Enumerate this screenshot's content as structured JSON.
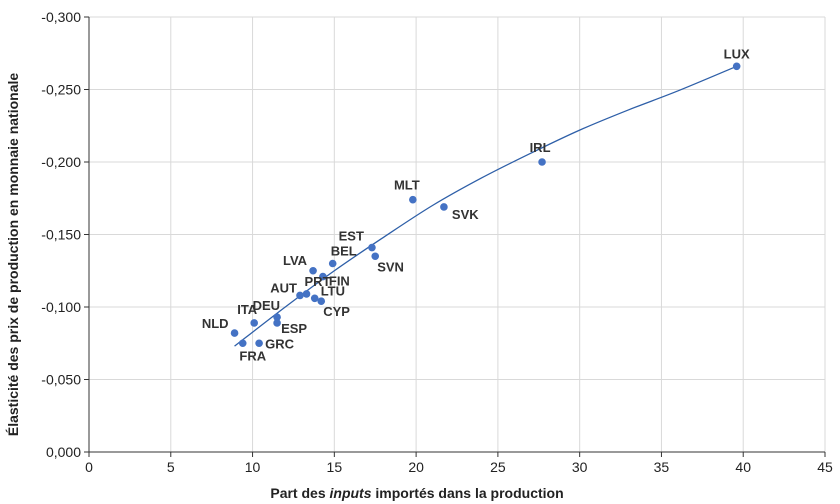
{
  "chart_data": {
    "type": "scatter",
    "xlabel_parts": [
      "Part des ",
      "inputs",
      " importés dans la production"
    ],
    "ylabel": "Élasticité des prix de production en monnaie nationale",
    "xlim": [
      0,
      45
    ],
    "ylim": [
      0,
      -0.3
    ],
    "x_ticks": [
      {
        "value": 0,
        "label": "0"
      },
      {
        "value": 5,
        "label": "5"
      },
      {
        "value": 10,
        "label": "10"
      },
      {
        "value": 15,
        "label": "15"
      },
      {
        "value": 20,
        "label": "20"
      },
      {
        "value": 25,
        "label": "25"
      },
      {
        "value": 30,
        "label": "30"
      },
      {
        "value": 35,
        "label": "35"
      },
      {
        "value": 40,
        "label": "40"
      },
      {
        "value": 45,
        "label": "45"
      }
    ],
    "y_ticks": [
      {
        "value": 0,
        "label": "0,000"
      },
      {
        "value": -0.05,
        "label": "-0,050"
      },
      {
        "value": -0.1,
        "label": "-0,100"
      },
      {
        "value": -0.15,
        "label": "-0,150"
      },
      {
        "value": -0.2,
        "label": "-0,200"
      },
      {
        "value": -0.25,
        "label": "-0,250"
      },
      {
        "value": -0.3,
        "label": "-0,300"
      }
    ],
    "grid": true,
    "point_color": "#4472c4",
    "trendline_color": "#2e5fa8",
    "points": [
      {
        "label": "LUX",
        "x": 39.6,
        "y": -0.266,
        "dx": 0,
        "dy": -8,
        "anchor": "middle"
      },
      {
        "label": "IRL",
        "x": 27.7,
        "y": -0.2,
        "dx": -2,
        "dy": -10,
        "anchor": "middle"
      },
      {
        "label": "MLT",
        "x": 19.8,
        "y": -0.174,
        "dx": -6,
        "dy": -10,
        "anchor": "middle"
      },
      {
        "label": "SVK",
        "x": 21.7,
        "y": -0.169,
        "dx": 8,
        "dy": 12,
        "anchor": "start"
      },
      {
        "label": "EST",
        "x": 17.3,
        "y": -0.141,
        "dx": -8,
        "dy": -7,
        "anchor": "end"
      },
      {
        "label": "SVN",
        "x": 17.5,
        "y": -0.135,
        "dx": 2,
        "dy": 15,
        "anchor": "start"
      },
      {
        "label": "BEL",
        "x": 14.9,
        "y": -0.13,
        "dx": -2,
        "dy": -8,
        "anchor": "start"
      },
      {
        "label": "LVA",
        "x": 13.7,
        "y": -0.125,
        "dx": -6,
        "dy": -6,
        "anchor": "end"
      },
      {
        "label": "FIN",
        "x": 14.3,
        "y": -0.121,
        "dx": 6,
        "dy": 9,
        "anchor": "start"
      },
      {
        "label": "PRT",
        "x": 13.3,
        "y": -0.109,
        "dx": -2,
        "dy": -8,
        "anchor": "start"
      },
      {
        "label": "AUT",
        "x": 12.9,
        "y": -0.108,
        "dx": -3,
        "dy": -3,
        "anchor": "end"
      },
      {
        "label": "LTU",
        "x": 13.8,
        "y": -0.106,
        "dx": 6,
        "dy": -3,
        "anchor": "start"
      },
      {
        "label": "CYP",
        "x": 14.2,
        "y": -0.104,
        "dx": 2,
        "dy": 15,
        "anchor": "start"
      },
      {
        "label": "DEU",
        "x": 11.5,
        "y": -0.093,
        "dx": 3,
        "dy": -7,
        "anchor": "end"
      },
      {
        "label": "ITA",
        "x": 10.1,
        "y": -0.089,
        "dx": 3,
        "dy": -9,
        "anchor": "end"
      },
      {
        "label": "ESP",
        "x": 11.5,
        "y": -0.089,
        "dx": 4,
        "dy": 10,
        "anchor": "start"
      },
      {
        "label": "NLD",
        "x": 8.9,
        "y": -0.082,
        "dx": -6,
        "dy": -5,
        "anchor": "end"
      },
      {
        "label": "GRC",
        "x": 10.4,
        "y": -0.075,
        "dx": 6,
        "dy": 5,
        "anchor": "start"
      },
      {
        "label": "FRA",
        "x": 9.4,
        "y": -0.075,
        "dx": 10,
        "dy": 17,
        "anchor": "middle"
      }
    ],
    "trendline": {
      "x": [
        8.9,
        12,
        15,
        18,
        21,
        24,
        27,
        30,
        33,
        36,
        39.6
      ],
      "y": [
        -0.073,
        -0.1,
        -0.125,
        -0.148,
        -0.17,
        -0.189,
        -0.206,
        -0.222,
        -0.236,
        -0.249,
        -0.266
      ]
    }
  }
}
